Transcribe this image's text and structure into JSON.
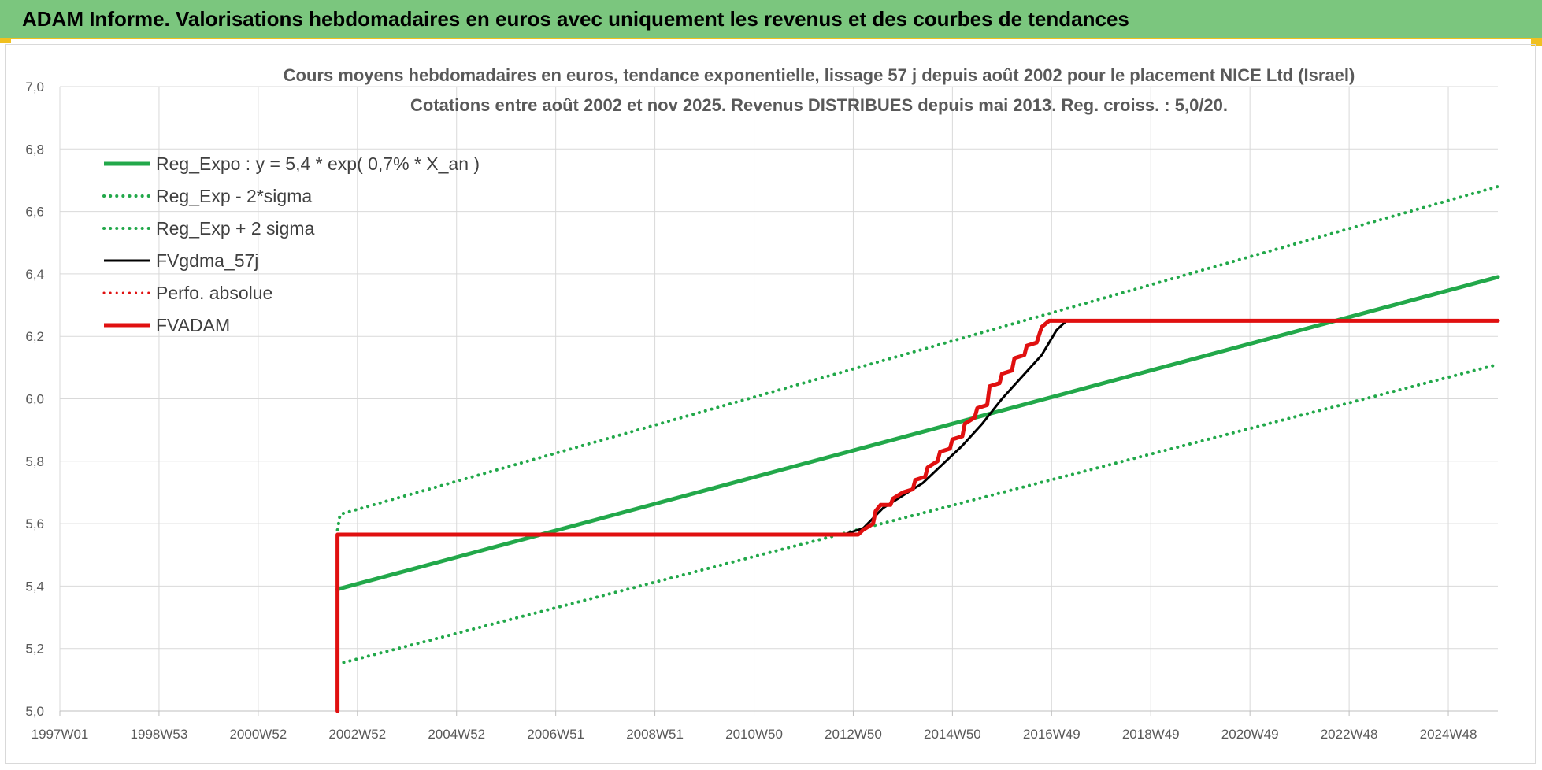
{
  "header": {
    "title": "ADAM Informe. Valorisations hebdomadaires en euros avec uniquement les revenus et des courbes de tendances"
  },
  "chart_data": {
    "type": "line",
    "title": "Cours moyens hebdomadaires en euros, tendance exponentielle, lissage 57 j depuis août 2002 pour le placement NICE Ltd (Israel)",
    "subtitle": "Cotations entre août 2002 et nov 2025.  Revenus DISTRIBUES depuis mai 2013. Reg. croiss. : 5,0/20.",
    "xlabel": "",
    "ylabel": "",
    "x_range": [
      1997.0,
      2026.0
    ],
    "x_ticks": [
      {
        "label": "1997W01",
        "x": 1997.0
      },
      {
        "label": "1998W53",
        "x": 1999.0
      },
      {
        "label": "2000W52",
        "x": 2001.0
      },
      {
        "label": "2002W52",
        "x": 2003.0
      },
      {
        "label": "2004W52",
        "x": 2005.0
      },
      {
        "label": "2006W51",
        "x": 2007.0
      },
      {
        "label": "2008W51",
        "x": 2009.0
      },
      {
        "label": "2010W50",
        "x": 2011.0
      },
      {
        "label": "2012W50",
        "x": 2013.0
      },
      {
        "label": "2014W50",
        "x": 2015.0
      },
      {
        "label": "2016W49",
        "x": 2017.0
      },
      {
        "label": "2018W49",
        "x": 2019.0
      },
      {
        "label": "2020W49",
        "x": 2021.0
      },
      {
        "label": "2022W48",
        "x": 2023.0
      },
      {
        "label": "2024W48",
        "x": 2025.0
      }
    ],
    "y_range": [
      5.0,
      7.0
    ],
    "y_ticks": [
      "5,0",
      "5,2",
      "5,4",
      "5,6",
      "5,8",
      "6,0",
      "6,2",
      "6,4",
      "6,6",
      "6,8",
      "7,0"
    ],
    "grid": true,
    "legend_position": "top-left",
    "series": [
      {
        "name": "Reg_Expo : y = 5,4 * exp( 0,7% *  X_an )",
        "color": "#22a84a",
        "style": "solid",
        "width": 5,
        "points": [
          [
            2002.6,
            5.39
          ],
          [
            2026.0,
            6.39
          ]
        ]
      },
      {
        "name": "Reg_Exp - 2*sigma",
        "color": "#22a84a",
        "style": "dotted",
        "width": 4,
        "points": [
          [
            2002.6,
            5.15
          ],
          [
            2026.0,
            6.11
          ]
        ]
      },
      {
        "name": "Reg_Exp + 2 sigma",
        "color": "#22a84a",
        "style": "dotted",
        "width": 4,
        "points": [
          [
            2002.6,
            5.58
          ],
          [
            2002.65,
            5.63
          ],
          [
            2026.0,
            6.68
          ]
        ]
      },
      {
        "name": "FVgdma_57j",
        "color": "#000000",
        "style": "solid",
        "width": 3,
        "points": [
          [
            2012.8,
            5.565
          ],
          [
            2013.2,
            5.585
          ],
          [
            2013.6,
            5.65
          ],
          [
            2014.0,
            5.69
          ],
          [
            2014.4,
            5.73
          ],
          [
            2014.8,
            5.79
          ],
          [
            2015.2,
            5.85
          ],
          [
            2015.6,
            5.92
          ],
          [
            2016.0,
            6.0
          ],
          [
            2016.4,
            6.07
          ],
          [
            2016.8,
            6.14
          ],
          [
            2017.1,
            6.22
          ],
          [
            2017.3,
            6.25
          ],
          [
            2026.0,
            6.25
          ]
        ]
      },
      {
        "name": "Perfo. absolue",
        "color": "#e01010",
        "style": "dotted",
        "width": 3,
        "points": []
      },
      {
        "name": "FVADAM",
        "color": "#e01010",
        "style": "solid",
        "width": 5,
        "points": [
          [
            2002.6,
            5.0
          ],
          [
            2002.6,
            5.565
          ],
          [
            2013.0,
            5.565
          ],
          [
            2013.1,
            5.565
          ],
          [
            2013.2,
            5.58
          ],
          [
            2013.4,
            5.6
          ],
          [
            2013.45,
            5.64
          ],
          [
            2013.55,
            5.66
          ],
          [
            2013.75,
            5.66
          ],
          [
            2013.8,
            5.68
          ],
          [
            2014.0,
            5.7
          ],
          [
            2014.2,
            5.71
          ],
          [
            2014.25,
            5.74
          ],
          [
            2014.45,
            5.75
          ],
          [
            2014.5,
            5.78
          ],
          [
            2014.7,
            5.8
          ],
          [
            2014.75,
            5.83
          ],
          [
            2014.95,
            5.84
          ],
          [
            2015.0,
            5.87
          ],
          [
            2015.2,
            5.88
          ],
          [
            2015.25,
            5.92
          ],
          [
            2015.45,
            5.94
          ],
          [
            2015.5,
            5.97
          ],
          [
            2015.7,
            5.98
          ],
          [
            2015.75,
            6.04
          ],
          [
            2015.95,
            6.05
          ],
          [
            2016.0,
            6.08
          ],
          [
            2016.2,
            6.09
          ],
          [
            2016.25,
            6.13
          ],
          [
            2016.45,
            6.14
          ],
          [
            2016.5,
            6.17
          ],
          [
            2016.7,
            6.18
          ],
          [
            2016.8,
            6.23
          ],
          [
            2016.95,
            6.25
          ],
          [
            2026.0,
            6.25
          ]
        ]
      }
    ]
  }
}
